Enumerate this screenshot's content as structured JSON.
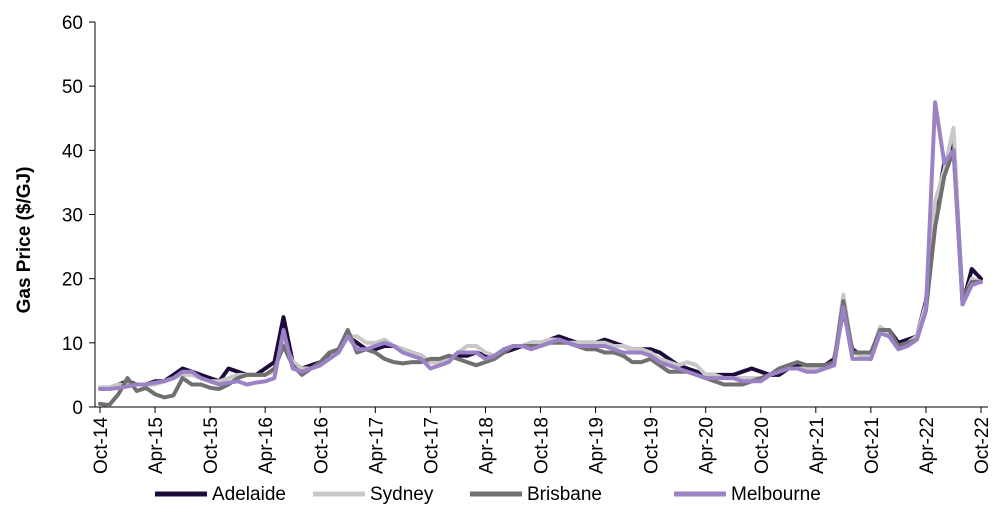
{
  "chart_data": {
    "type": "line",
    "ylabel": "Gas Price ($/GJ)",
    "xlabel": "",
    "ylim": [
      0,
      60
    ],
    "yticks": [
      0,
      10,
      20,
      30,
      40,
      50,
      60
    ],
    "x_tick_labels": [
      "Oct-14",
      "Apr-15",
      "Oct-15",
      "Apr-16",
      "Oct-16",
      "Apr-17",
      "Oct-17",
      "Apr-18",
      "Oct-18",
      "Apr-19",
      "Oct-19",
      "Apr-20",
      "Oct-20",
      "Apr-21",
      "Oct-21",
      "Apr-22",
      "Oct-22"
    ],
    "grid": false,
    "legend_position": "bottom",
    "x": [
      "Oct-14",
      "Nov-14",
      "Dec-14",
      "Jan-15",
      "Feb-15",
      "Mar-15",
      "Apr-15",
      "May-15",
      "Jun-15",
      "Jul-15",
      "Aug-15",
      "Sep-15",
      "Oct-15",
      "Nov-15",
      "Dec-15",
      "Jan-16",
      "Feb-16",
      "Mar-16",
      "Apr-16",
      "May-16",
      "Jun-16",
      "Jul-16",
      "Aug-16",
      "Sep-16",
      "Oct-16",
      "Nov-16",
      "Dec-16",
      "Jan-17",
      "Feb-17",
      "Mar-17",
      "Apr-17",
      "May-17",
      "Jun-17",
      "Jul-17",
      "Aug-17",
      "Sep-17",
      "Oct-17",
      "Nov-17",
      "Dec-17",
      "Jan-18",
      "Feb-18",
      "Mar-18",
      "Apr-18",
      "May-18",
      "Jun-18",
      "Jul-18",
      "Aug-18",
      "Sep-18",
      "Oct-18",
      "Nov-18",
      "Dec-18",
      "Jan-19",
      "Feb-19",
      "Mar-19",
      "Apr-19",
      "May-19",
      "Jun-19",
      "Jul-19",
      "Aug-19",
      "Sep-19",
      "Oct-19",
      "Nov-19",
      "Dec-19",
      "Jan-20",
      "Feb-20",
      "Mar-20",
      "Apr-20",
      "May-20",
      "Jun-20",
      "Jul-20",
      "Aug-20",
      "Sep-20",
      "Oct-20",
      "Nov-20",
      "Dec-20",
      "Jan-21",
      "Feb-21",
      "Mar-21",
      "Apr-21",
      "May-21",
      "Jun-21",
      "Jul-21",
      "Aug-21",
      "Sep-21",
      "Oct-21",
      "Nov-21",
      "Dec-21",
      "Jan-22",
      "Feb-22",
      "Mar-22",
      "Apr-22",
      "May-22",
      "Jun-22",
      "Jul-22",
      "Aug-22",
      "Sep-22",
      "Oct-22"
    ],
    "series": [
      {
        "name": "Adelaide",
        "color": "#1c0a3a",
        "values": [
          3,
          3,
          3.5,
          4,
          3.5,
          3.5,
          4,
          4,
          5,
          6,
          5.5,
          5,
          4.5,
          4,
          6,
          5.5,
          5,
          5,
          6,
          7,
          14,
          7,
          6,
          6.5,
          7,
          8,
          9,
          11,
          10,
          9,
          9,
          9.5,
          9.5,
          9,
          8.5,
          8,
          7,
          7,
          7.5,
          8,
          8,
          8.5,
          8,
          8,
          8.5,
          9,
          9.5,
          10,
          10,
          10.5,
          11,
          10.5,
          10,
          10,
          10,
          10.5,
          10,
          9.5,
          9,
          9,
          9,
          8.5,
          7.5,
          6.5,
          6,
          5.5,
          5,
          5,
          5,
          5,
          5.5,
          6,
          5.5,
          5,
          5,
          6,
          6.5,
          6.5,
          6.5,
          6.5,
          7.5,
          15,
          9,
          8,
          7.5,
          12,
          12,
          10,
          10.5,
          11,
          16.5,
          30,
          38,
          41,
          16,
          21.5,
          20
        ]
      },
      {
        "name": "Sydney",
        "color": "#c8c8c8",
        "values": [
          3,
          3,
          3.5,
          3.5,
          3.5,
          3.5,
          3.5,
          4,
          4.5,
          5,
          5,
          4.5,
          4,
          4,
          4.5,
          5,
          5,
          5,
          5,
          5.5,
          10.5,
          7,
          6,
          6,
          6.5,
          7.5,
          9,
          11,
          11,
          10,
          10,
          10.5,
          9.5,
          9,
          8.5,
          8,
          7,
          7,
          7.5,
          8.5,
          9.5,
          9.5,
          8.5,
          8,
          8.5,
          9.5,
          9.5,
          10,
          10,
          10.5,
          10.5,
          10,
          10,
          10,
          10,
          10,
          9.5,
          9.5,
          9,
          9,
          8.5,
          7.5,
          7,
          6.5,
          7,
          6.5,
          5,
          5,
          4.5,
          4.5,
          4.5,
          4.5,
          4.5,
          5,
          5.5,
          6,
          6,
          6,
          6,
          6,
          7,
          17.5,
          8.5,
          8,
          8,
          12.5,
          11.5,
          9.5,
          10,
          11,
          16,
          32,
          37,
          43.5,
          16.5,
          20,
          19.5
        ]
      },
      {
        "name": "Brisbane",
        "color": "#707070",
        "values": [
          0.5,
          0.3,
          2,
          4.5,
          2.5,
          3,
          2,
          1.5,
          1.8,
          4.5,
          3.5,
          3.5,
          3,
          2.8,
          3.5,
          4.5,
          5,
          5,
          5,
          6,
          9.5,
          6.5,
          5,
          6,
          7,
          8.5,
          9,
          12,
          8.5,
          9,
          8.5,
          7.5,
          7,
          6.8,
          7,
          7,
          7.5,
          7.5,
          8,
          7.5,
          7,
          6.5,
          7,
          7.5,
          8.5,
          9.5,
          9.5,
          9.5,
          9.5,
          10,
          10,
          10,
          9.5,
          9,
          9,
          8.5,
          8.5,
          8,
          7,
          7,
          7.5,
          6.5,
          5.5,
          5.5,
          5.5,
          5,
          4.5,
          4,
          3.5,
          3.5,
          3.5,
          4,
          4.5,
          5,
          6,
          6.5,
          7,
          6.5,
          6.5,
          6.5,
          7,
          16.5,
          8.5,
          8.5,
          8.5,
          12,
          12,
          9.5,
          10,
          10.5,
          15,
          28,
          36,
          40,
          17,
          19.5,
          19.5
        ]
      },
      {
        "name": "Melbourne",
        "color": "#9a82c4",
        "values": [
          2.8,
          2.8,
          3,
          3.2,
          3.5,
          3.5,
          3.8,
          4,
          4.5,
          5.5,
          5.5,
          4.5,
          4,
          3.5,
          3.8,
          4,
          3.5,
          3.8,
          4,
          4.5,
          12,
          6,
          5.5,
          6,
          6.5,
          7.5,
          8.5,
          11,
          9,
          9,
          9.5,
          10,
          9.5,
          8.5,
          8,
          7.5,
          6,
          6.5,
          7,
          8.5,
          8.5,
          8.5,
          7.5,
          8,
          9,
          9.5,
          9.5,
          9,
          9.5,
          10,
          10.5,
          10,
          9.5,
          9.5,
          9.5,
          9.5,
          9,
          8.5,
          8.5,
          8.5,
          8,
          7,
          6.5,
          6,
          5.5,
          5,
          4.5,
          4.5,
          4.5,
          4.5,
          4,
          4,
          4,
          5,
          5.5,
          6,
          6,
          5.5,
          5.5,
          6,
          6.5,
          15.5,
          7.5,
          7.5,
          7.5,
          11.5,
          11,
          9,
          9.5,
          10.5,
          15,
          47.5,
          38,
          40,
          16,
          19,
          19.5
        ]
      }
    ]
  }
}
